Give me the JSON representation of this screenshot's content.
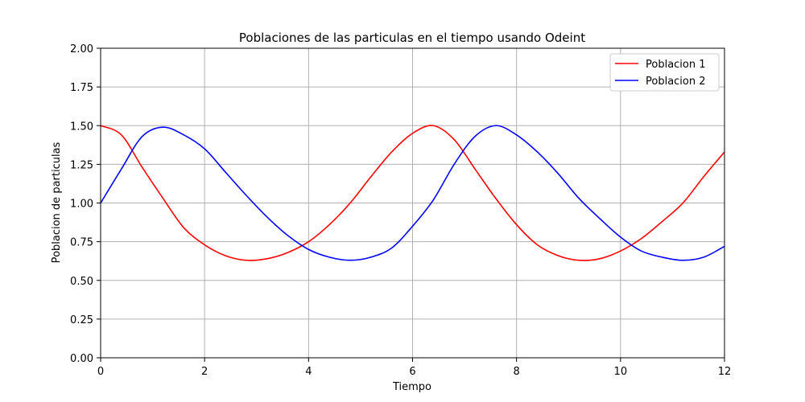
{
  "chart_data": {
    "type": "line",
    "title": "Poblaciones de las particulas en el tiempo usando Odeint",
    "xlabel": "Tiempo",
    "ylabel": "Poblacion de particulas",
    "xlim": [
      0,
      12
    ],
    "ylim": [
      0,
      2
    ],
    "xticks": [
      0,
      2,
      4,
      6,
      8,
      10,
      12
    ],
    "yticks": [
      0,
      0.25,
      0.5,
      0.75,
      1.0,
      1.25,
      1.5,
      1.75,
      2.0
    ],
    "xtick_labels": [
      "0",
      "2",
      "4",
      "6",
      "8",
      "10",
      "12"
    ],
    "ytick_labels": [
      "0.00",
      "0.25",
      "0.50",
      "0.75",
      "1.00",
      "1.25",
      "1.50",
      "1.75",
      "2.00"
    ],
    "grid": true,
    "legend_position": "top-right",
    "x": [
      0.0,
      0.4,
      0.8,
      1.2,
      1.6,
      2.0,
      2.4,
      2.8,
      3.2,
      3.6,
      4.0,
      4.4,
      4.8,
      5.2,
      5.6,
      6.0,
      6.4,
      6.8,
      7.2,
      7.6,
      8.0,
      8.4,
      8.8,
      9.2,
      9.6,
      10.0,
      10.4,
      10.8,
      11.2,
      11.6,
      12.0
    ],
    "series": [
      {
        "name": "Poblacion 1",
        "color": "#ff0000",
        "values": [
          1.5,
          1.44,
          1.23,
          1.03,
          0.84,
          0.73,
          0.66,
          0.63,
          0.64,
          0.68,
          0.75,
          0.86,
          1.0,
          1.17,
          1.33,
          1.45,
          1.5,
          1.41,
          1.22,
          1.03,
          0.86,
          0.73,
          0.66,
          0.63,
          0.64,
          0.69,
          0.77,
          0.88,
          1.0,
          1.17,
          1.33
        ]
      },
      {
        "name": "Poblacion 2",
        "color": "#0000ff",
        "values": [
          1.0,
          1.22,
          1.43,
          1.49,
          1.44,
          1.35,
          1.2,
          1.05,
          0.91,
          0.79,
          0.7,
          0.65,
          0.63,
          0.65,
          0.71,
          0.85,
          1.02,
          1.25,
          1.43,
          1.5,
          1.44,
          1.33,
          1.19,
          1.03,
          0.9,
          0.78,
          0.69,
          0.65,
          0.63,
          0.65,
          0.72
        ]
      }
    ]
  }
}
